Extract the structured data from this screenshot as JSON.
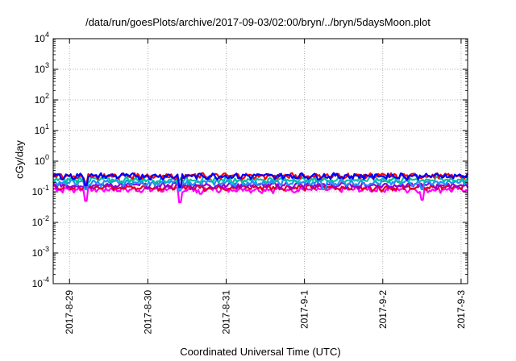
{
  "chart_data": {
    "type": "line",
    "title": "/data/run/goesPlots/archive/2017-09-03/02:00/bryn/../bryn/5daysMoon.plot",
    "xlabel": "Coordinated Universal Time (UTC)",
    "ylabel": "cGy/day",
    "yscale": "log",
    "ylim_exponents": [
      -4,
      4
    ],
    "y_ticks": [
      {
        "base": "10",
        "exp": "-4"
      },
      {
        "base": "10",
        "exp": "-3"
      },
      {
        "base": "10",
        "exp": "-2"
      },
      {
        "base": "10",
        "exp": "-1"
      },
      {
        "base": "10",
        "exp": "0"
      },
      {
        "base": "10",
        "exp": "1"
      },
      {
        "base": "10",
        "exp": "2"
      },
      {
        "base": "10",
        "exp": "3"
      },
      {
        "base": "10",
        "exp": "4"
      }
    ],
    "xlim": [
      "2017-08-28T19:00",
      "2017-09-03T02:00"
    ],
    "x_ticks": [
      {
        "label": "2017-8-29",
        "date": "2017-08-29T00:00"
      },
      {
        "label": "2017-8-30",
        "date": "2017-08-30T00:00"
      },
      {
        "label": "2017-8-31",
        "date": "2017-08-31T00:00"
      },
      {
        "label": "2017-9-1",
        "date": "2017-09-01T00:00"
      },
      {
        "label": "2017-9-2",
        "date": "2017-09-02T00:00"
      },
      {
        "label": "2017-9-3",
        "date": "2017-09-03T00:00"
      }
    ],
    "grid": true,
    "series": [
      {
        "color": "#ff00ff",
        "level": 0.12,
        "dips": [
          [
            "2017-08-29T05:00",
            0.05
          ],
          [
            "2017-08-30T10:00",
            0.045
          ],
          [
            "2017-08-30T16:00",
            0.085
          ],
          [
            "2017-09-02T12:00",
            0.055
          ]
        ]
      },
      {
        "color": "#e00020",
        "level": 0.14,
        "dips": []
      },
      {
        "color": "#9400d3",
        "level": 0.165,
        "dips": []
      },
      {
        "color": "#1e90ff",
        "level": 0.2,
        "dips": [
          [
            "2017-08-29T05:00",
            0.12
          ],
          [
            "2017-08-30T10:00",
            0.11
          ],
          [
            "2017-09-01T06:00",
            0.12
          ],
          [
            "2017-09-02T12:00",
            0.12
          ]
        ]
      },
      {
        "color": "#00c0a0",
        "level": 0.25,
        "dips": []
      },
      {
        "color": "#ff0000",
        "level": 0.33,
        "dips": [
          [
            "2017-08-29T05:00",
            0.18
          ],
          [
            "2017-08-30T10:00",
            0.16
          ]
        ]
      },
      {
        "color": "#0000ff",
        "level": 0.33,
        "dips": [
          [
            "2017-08-29T05:00",
            0.16
          ],
          [
            "2017-08-30T10:00",
            0.14
          ]
        ]
      }
    ]
  }
}
